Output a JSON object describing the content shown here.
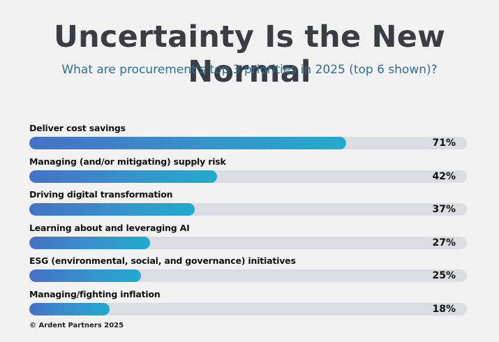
{
  "chart_data": {
    "type": "bar",
    "orientation": "horizontal",
    "title": "Uncertainty Is the New Normal",
    "subtitle": "What are procurement’s top 3 priorities in 2025 (top 6 shown)?",
    "categories": [
      "Deliver cost savings",
      "Managing (and/or mitigating) supply risk",
      "Driving digital transformation",
      "Learning about and leveraging AI",
      "ESG (environmental, social, and governance) initiatives",
      "Managing/fighting inflation"
    ],
    "values": [
      71,
      42,
      37,
      27,
      25,
      18
    ],
    "value_labels": [
      "71%",
      "42%",
      "37%",
      "27%",
      "25%",
      "18%"
    ],
    "unit": "%",
    "xlim": [
      0,
      98
    ]
  },
  "footer": "© Ardent Partners 2025",
  "colors": {
    "bar_start": "#4671c6",
    "bar_end": "#22aacc",
    "track": "#dcdde2",
    "title": "#3a3d44",
    "subtitle": "#2f6f92"
  }
}
